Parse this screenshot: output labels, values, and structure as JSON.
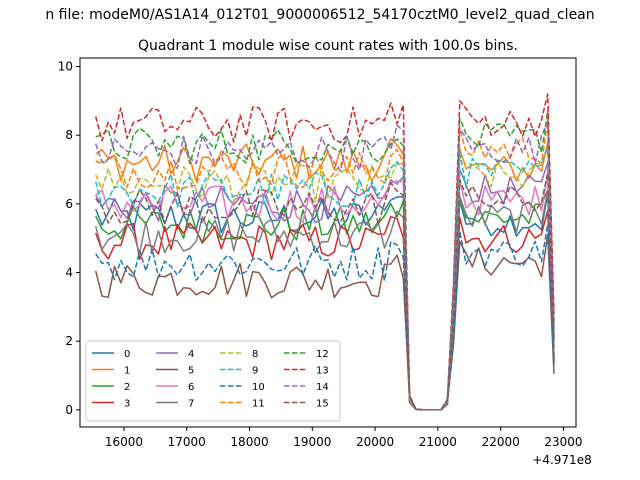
{
  "suptitle": "n file: modeM0/AS1A14_012T01_9000006512_54170cztM0_level2_quad_clean",
  "chart_data": {
    "type": "line",
    "title": "Quadrant 1 module wise count rates with 100.0s bins.",
    "xlabel": "",
    "ylabel": "",
    "x_offset_label": "+4.971e8",
    "xlim": [
      15300,
      23200
    ],
    "ylim": [
      -0.5,
      10.25
    ],
    "xticks": [
      16000,
      17000,
      18000,
      19000,
      20000,
      21000,
      22000,
      23000
    ],
    "xtick_labels": [
      "16000",
      "17000",
      "18000",
      "19000",
      "20000",
      "21000",
      "22000",
      "23000"
    ],
    "yticks": [
      0,
      2,
      4,
      6,
      8,
      10
    ],
    "ytick_labels": [
      "0",
      "2",
      "4",
      "6",
      "8",
      "10"
    ],
    "grid": false,
    "legend_placement": "lower-left",
    "legend_columns": 4,
    "gap": {
      "start": 20500,
      "end": 21200
    },
    "x_segment1": [
      15550,
      15650,
      15750,
      15850,
      15950,
      16050,
      16150,
      16250,
      16350,
      16450,
      16550,
      16650,
      16750,
      16850,
      16950,
      17050,
      17150,
      17250,
      17350,
      17450,
      17550,
      17650,
      17750,
      17850,
      17950,
      18050,
      18150,
      18250,
      18350,
      18450,
      18550,
      18650,
      18750,
      18850,
      18950,
      19050,
      19150,
      19250,
      19350,
      19450,
      19550,
      19650,
      19750,
      19850,
      19950,
      20050,
      20150,
      20250,
      20350,
      20450
    ],
    "x_gap": [
      20550,
      20650,
      20750,
      20850,
      20950,
      21050,
      21150
    ],
    "x_segment2": [
      21250,
      21350,
      21450,
      21550,
      21650,
      21750,
      21850,
      21950,
      22050,
      22150,
      22250,
      22350,
      22450,
      22550,
      22650,
      22750,
      22850
    ],
    "series": [
      {
        "name": "0",
        "color": "#1f77b4",
        "style": "solid",
        "base1": 5.6,
        "base2": 5.5,
        "tail": 1.4
      },
      {
        "name": "1",
        "color": "#ff7f0e",
        "style": "solid",
        "base1": 7.2,
        "base2": 7.0,
        "tail": 2.2
      },
      {
        "name": "2",
        "color": "#2ca02c",
        "style": "solid",
        "base1": 5.4,
        "base2": 5.6,
        "tail": 1.8
      },
      {
        "name": "3",
        "color": "#d62728",
        "style": "solid",
        "base1": 4.9,
        "base2": 5.0,
        "tail": 1.5
      },
      {
        "name": "4",
        "color": "#9467bd",
        "style": "solid",
        "base1": 6.0,
        "base2": 6.4,
        "tail": 2.0
      },
      {
        "name": "5",
        "color": "#8c564b",
        "style": "solid",
        "base1": 3.8,
        "base2": 4.3,
        "tail": 1.05
      },
      {
        "name": "6",
        "color": "#e377c2",
        "style": "solid",
        "base1": 6.0,
        "base2": 6.1,
        "tail": 2.1
      },
      {
        "name": "7",
        "color": "#7f7f7f",
        "style": "solid",
        "base1": 5.1,
        "base2": 5.6,
        "tail": 1.6
      },
      {
        "name": "8",
        "color": "#bcbd22",
        "style": "dashed",
        "base1": 6.6,
        "base2": 6.8,
        "tail": 2.3
      },
      {
        "name": "9",
        "color": "#17becf",
        "style": "dashed",
        "base1": 6.4,
        "base2": 6.9,
        "tail": 2.2
      },
      {
        "name": "10",
        "color": "#1f77b4",
        "style": "dashed",
        "base1": 4.3,
        "base2": 4.6,
        "tail": 1.3
      },
      {
        "name": "11",
        "color": "#ff7f0e",
        "style": "dashed",
        "base1": 7.0,
        "base2": 7.6,
        "tail": 2.5
      },
      {
        "name": "12",
        "color": "#2ca02c",
        "style": "dashed",
        "base1": 7.7,
        "base2": 7.9,
        "tail": 2.6
      },
      {
        "name": "13",
        "color": "#d62728",
        "style": "dashed",
        "base1": 8.3,
        "base2": 8.4,
        "tail": 2.8
      },
      {
        "name": "14",
        "color": "#9467bd",
        "style": "dashed",
        "base1": 7.5,
        "base2": 7.6,
        "tail": 2.4
      },
      {
        "name": "15",
        "color": "#8c564b",
        "style": "dashed",
        "base1": 5.9,
        "base2": 6.1,
        "tail": 2.0
      }
    ]
  }
}
